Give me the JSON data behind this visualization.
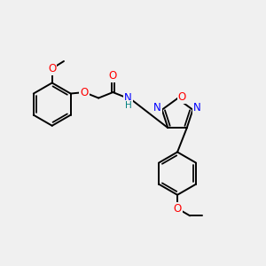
{
  "bg_color": "#f0f0f0",
  "bond_color": "#000000",
  "bond_width": 1.4,
  "atom_colors": {
    "O": "#ff0000",
    "N": "#0000ff",
    "C": "#000000",
    "H": "#008080"
  },
  "font_size": 8.5,
  "figsize": [
    3.0,
    3.0
  ],
  "dpi": 100
}
